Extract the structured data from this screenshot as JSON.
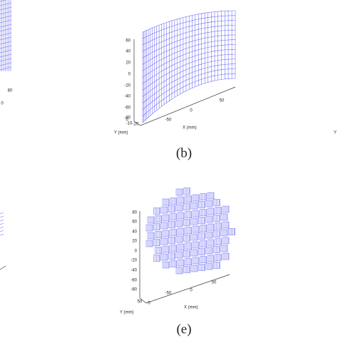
{
  "left_partial": {
    "tick_labels": [
      "80",
      "0"
    ]
  },
  "panel_b": {
    "z_ticks": [
      "60",
      "40",
      "20",
      "0",
      "-20",
      "-40",
      "-60",
      "-80"
    ],
    "y_ticks": [
      "0",
      "-10",
      "-20"
    ],
    "y_label": "Y (mm)",
    "x_ticks": [
      "-50",
      "0",
      "50"
    ],
    "x_label": "X (mm)",
    "caption": "(b)"
  },
  "right_partial": {
    "label": "Y"
  },
  "panel_e": {
    "z_ticks": [
      "80",
      "60",
      "40",
      "20",
      "0",
      "-20",
      "-40",
      "-60",
      "-80"
    ],
    "y_ticks": [
      "50",
      "0"
    ],
    "y_label": "Y (mm)",
    "x_ticks": [
      "-50",
      "0",
      "50"
    ],
    "x_label": "X (mm)",
    "caption": "(e)"
  }
}
